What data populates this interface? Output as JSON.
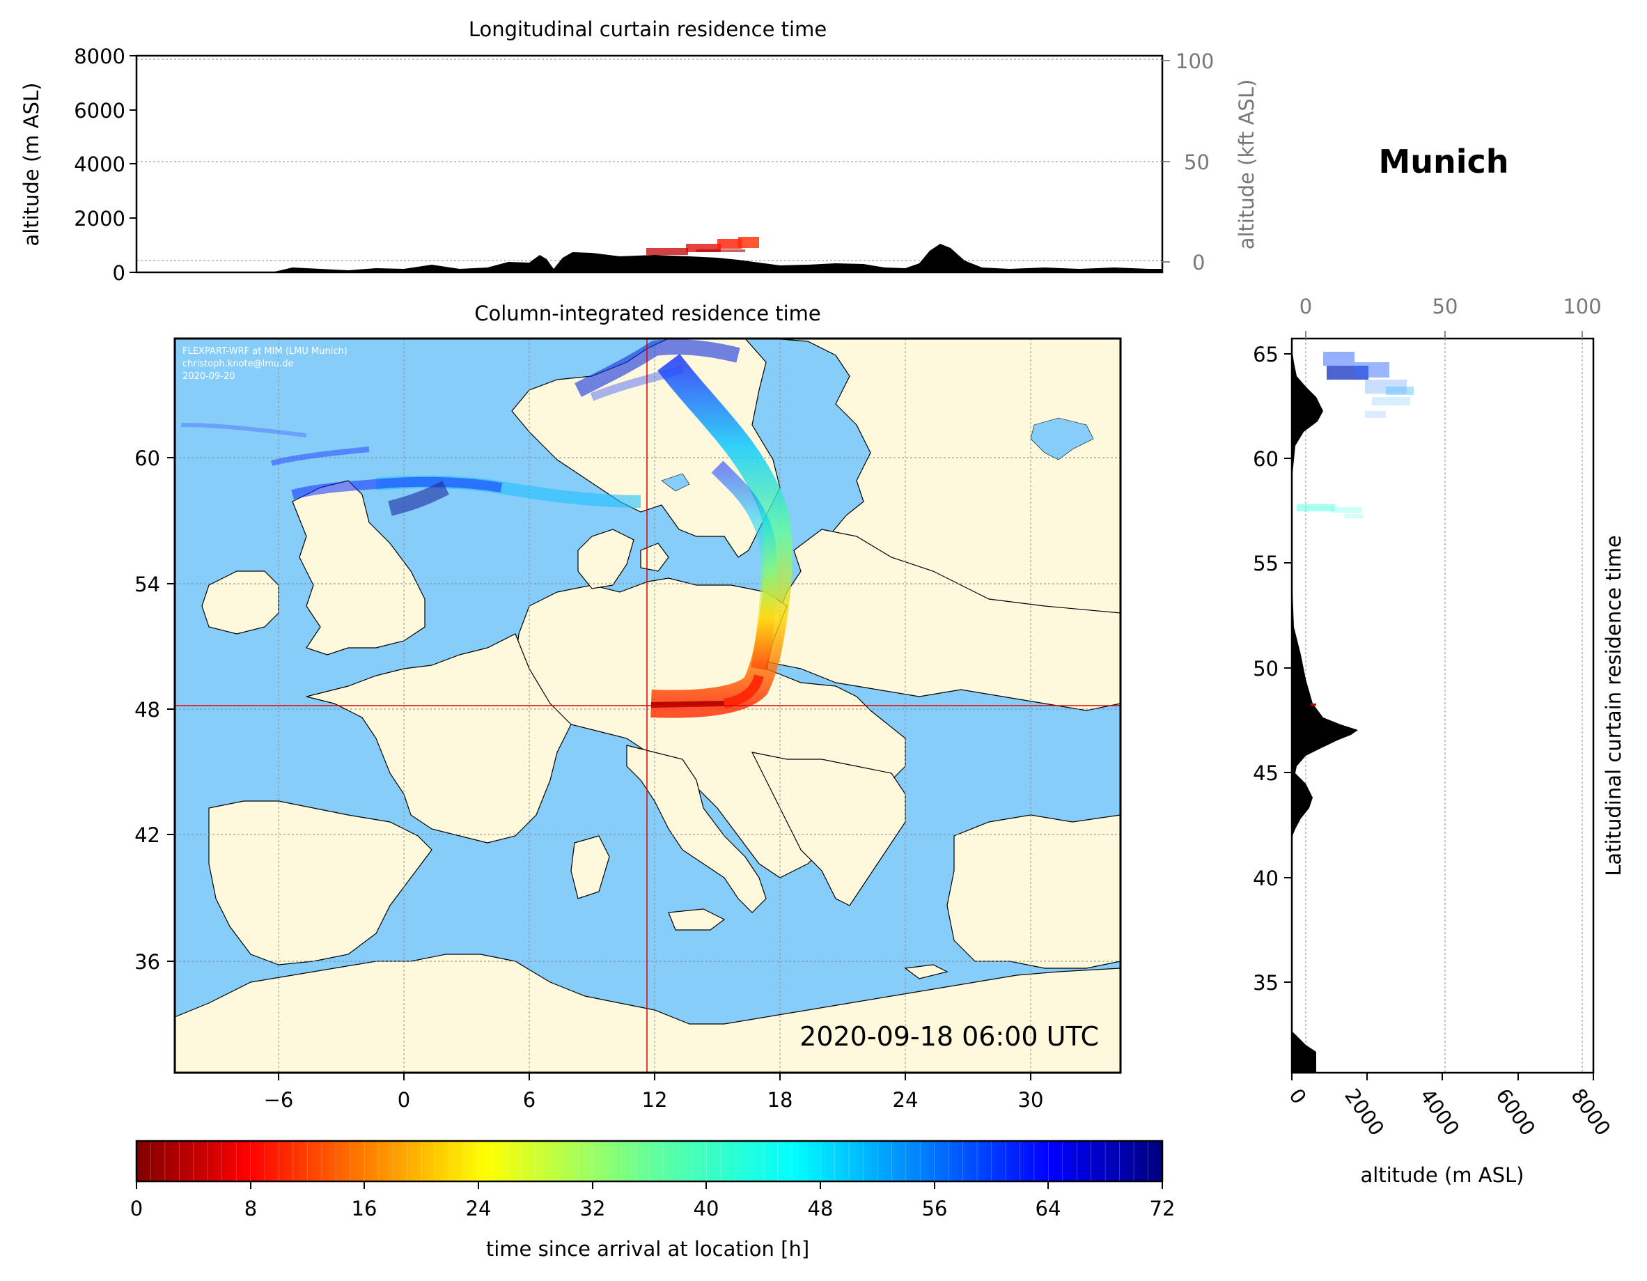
{
  "location_name": "Munich",
  "longitudinal": {
    "title": "Longitudinal curtain residence time",
    "ylabel_left": "altitude (m ASL)",
    "ylabel_right": "altitude (kft ASL)",
    "yticks_left": [
      "8000",
      "6000",
      "4000",
      "2000",
      "0"
    ],
    "yticks_right": [
      "100",
      "50",
      "0"
    ]
  },
  "map": {
    "title": "Column-integrated residence time",
    "credit_line1": "FLEXPART-WRF at MIM (LMU Munich)",
    "credit_line2": "christoph.knote@lmu.de",
    "credit_line3": "2020-09-20",
    "timestamp": "2020-09-18 06:00 UTC",
    "xticks": [
      "−6",
      "0",
      "6",
      "12",
      "18",
      "24",
      "30"
    ],
    "yticks": [
      "60",
      "54",
      "48",
      "42",
      "36"
    ],
    "release_lon": 11.6,
    "release_lat": 48.1,
    "colors": {
      "ocean": "#87cdf9",
      "land": "#fef8dd",
      "border": "#000000",
      "crosshair": "#e00000"
    }
  },
  "latitudinal": {
    "title": "Latitudinal curtain residence time",
    "xlabel": "altitude (m ASL)",
    "xticks_bottom": [
      "0",
      "2000",
      "4000",
      "6000",
      "8000"
    ],
    "xticks_top": [
      "0",
      "50",
      "100"
    ],
    "yticks": [
      "65",
      "60",
      "55",
      "50",
      "45",
      "40",
      "35"
    ]
  },
  "colorbar": {
    "label": "time since arrival at location [h]",
    "ticks": [
      "0",
      "8",
      "16",
      "24",
      "32",
      "40",
      "48",
      "56",
      "64",
      "72"
    ],
    "min": 0,
    "max": 72,
    "colormap": "jet_r"
  }
}
